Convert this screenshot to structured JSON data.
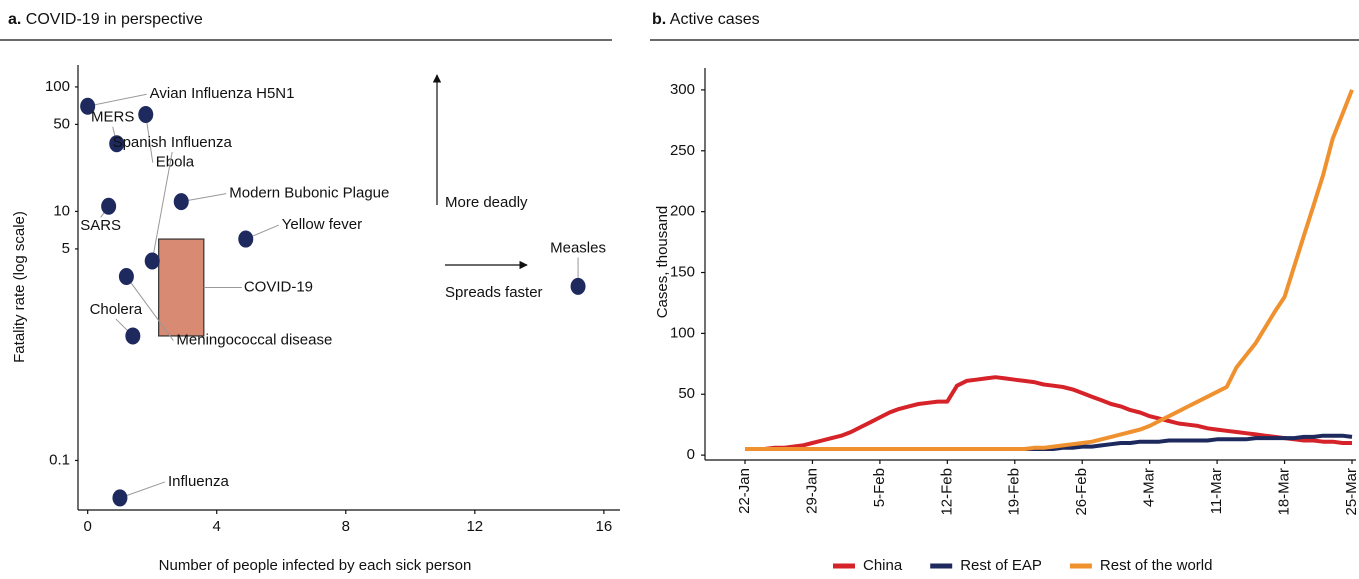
{
  "chart_data": [
    {
      "type": "scatter",
      "panel": "a.",
      "title": "COVID-19 in perspective",
      "xlabel": "Number of people infected by each sick person",
      "ylabel": "Fatality rate (log scale)",
      "annotations": [
        "More deadly",
        "Spreads faster"
      ],
      "labels": [
        "Avian Influenza H5N1",
        "MERS",
        "Ebola",
        "SARS",
        "Modern Bubonic Plague",
        "Yellow fever",
        "Spanish Influenza",
        "Meningococcal disease",
        "Cholera",
        "Influenza",
        "Measles"
      ],
      "x": [
        0,
        0.9,
        1.8,
        0.65,
        2.9,
        4.9,
        2.0,
        1.2,
        1.4,
        1.0,
        15.2
      ],
      "values": [
        70,
        35,
        60,
        11,
        12,
        6,
        4,
        3,
        1,
        0.05,
        2.5
      ],
      "color": "#1e2a5e",
      "highlight": {
        "name": "COVID-19",
        "x": [
          2.2,
          3.6
        ],
        "y": [
          1,
          6
        ],
        "color": "#d98a72"
      },
      "log_y": true,
      "xlim": [
        -0.3,
        16.5
      ],
      "xticks": [
        0,
        4,
        8,
        12,
        16
      ],
      "ylim": [
        0.04,
        150
      ],
      "yticks": [
        100,
        50,
        10,
        5,
        0.1
      ]
    },
    {
      "type": "line",
      "panel": "b.",
      "title": "Active cases",
      "ylabel": "Cases, thousand",
      "categories": [
        "22-Jan",
        null,
        null,
        null,
        null,
        null,
        null,
        "29-Jan",
        null,
        null,
        null,
        null,
        null,
        null,
        "5-Feb",
        null,
        null,
        null,
        null,
        null,
        null,
        "12-Feb",
        null,
        null,
        null,
        null,
        null,
        null,
        "19-Feb",
        null,
        null,
        null,
        null,
        null,
        null,
        "26-Feb",
        null,
        null,
        null,
        null,
        null,
        null,
        "4-Mar",
        null,
        null,
        null,
        null,
        null,
        null,
        "11-Mar",
        null,
        null,
        null,
        null,
        null,
        null,
        "18-Mar",
        null,
        null,
        null,
        null,
        null,
        null,
        "25-Mar"
      ],
      "series": [
        {
          "name": "China",
          "color": "#d6232a",
          "values": [
            5,
            5,
            5,
            6,
            6,
            7,
            8,
            10,
            12,
            14,
            16,
            19,
            23,
            27,
            31,
            35,
            38,
            40,
            42,
            43,
            44,
            44,
            57,
            61,
            62,
            63,
            64,
            63,
            62,
            61,
            60,
            58,
            57,
            56,
            54,
            51,
            48,
            45,
            42,
            40,
            37,
            35,
            32,
            30,
            28,
            26,
            25,
            24,
            22,
            21,
            20,
            19,
            18,
            17,
            16,
            15,
            14,
            13,
            12,
            12,
            11,
            11,
            10,
            10
          ]
        },
        {
          "name": "Rest of EAP",
          "color": "#1e2a5e",
          "values": [
            5,
            5,
            5,
            5,
            5,
            5,
            5,
            5,
            5,
            5,
            5,
            5,
            5,
            5,
            5,
            5,
            5,
            5,
            5,
            5,
            5,
            5,
            5,
            5,
            5,
            5,
            5,
            5,
            5,
            5,
            5,
            5,
            5,
            6,
            6,
            7,
            7,
            8,
            9,
            10,
            10,
            11,
            11,
            11,
            12,
            12,
            12,
            12,
            12,
            13,
            13,
            13,
            13,
            14,
            14,
            14,
            14,
            14,
            15,
            15,
            16,
            16,
            16,
            15
          ]
        },
        {
          "name": "Rest of the world",
          "color": "#f0912f",
          "values": [
            5,
            5,
            5,
            5,
            5,
            5,
            5,
            5,
            5,
            5,
            5,
            5,
            5,
            5,
            5,
            5,
            5,
            5,
            5,
            5,
            5,
            5,
            5,
            5,
            5,
            5,
            5,
            5,
            5,
            5,
            6,
            6,
            7,
            8,
            9,
            10,
            11,
            13,
            15,
            17,
            19,
            21,
            24,
            28,
            32,
            36,
            40,
            44,
            48,
            52,
            56,
            72,
            82,
            92,
            105,
            118,
            130,
            155,
            180,
            205,
            230,
            260,
            280,
            300
          ]
        }
      ],
      "ylim": [
        -4,
        318
      ],
      "yticks": [
        0,
        50,
        100,
        150,
        200,
        250,
        300
      ],
      "legend": "bottom"
    }
  ]
}
